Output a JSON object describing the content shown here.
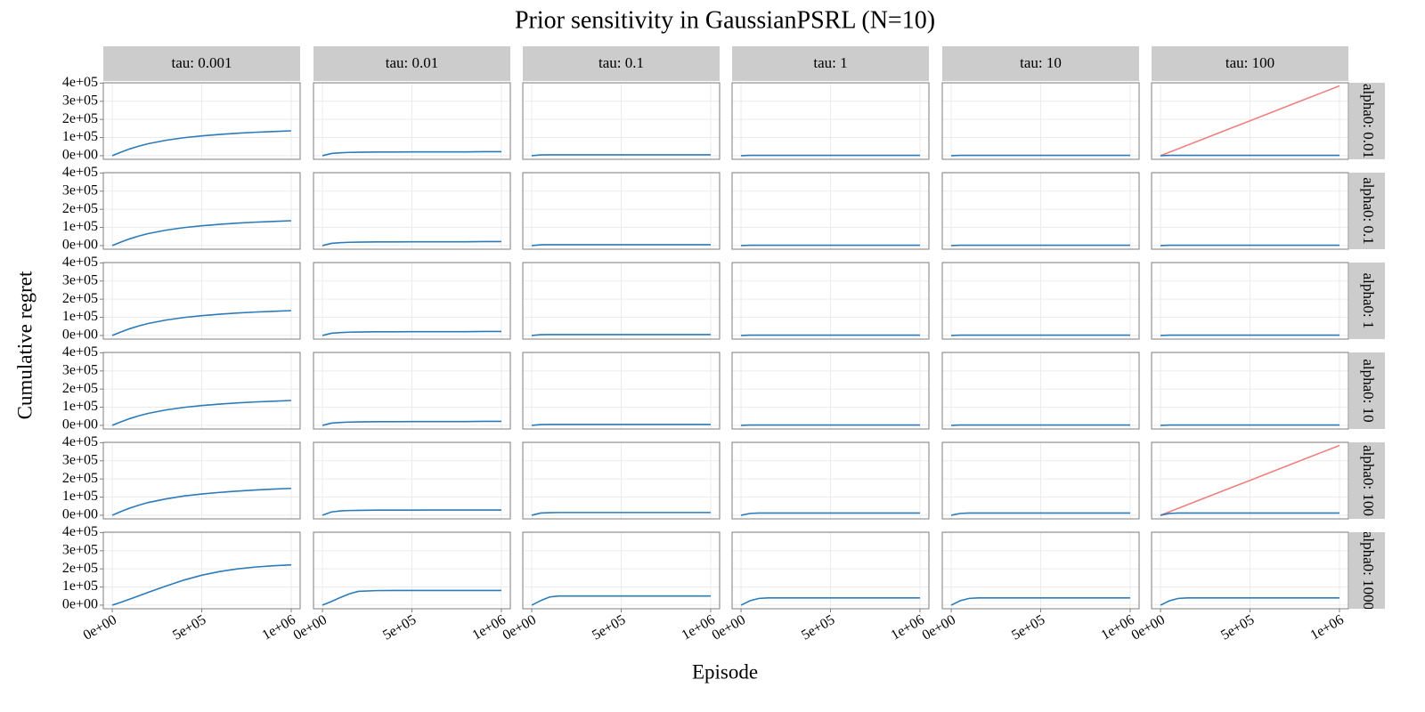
{
  "chart_data": {
    "type": "line",
    "title": "Prior sensitivity in GaussianPSRL (N=10)",
    "xlabel": "Episode",
    "ylabel": "Cumulative regret",
    "col_labels": [
      "tau: 0.001",
      "tau: 0.01",
      "tau: 0.1",
      "tau: 1",
      "tau: 10",
      "tau: 100"
    ],
    "row_labels": [
      "alpha0: 0.01",
      "alpha0: 0.1",
      "alpha0: 1",
      "alpha0: 10",
      "alpha0: 100",
      "alpha0: 1000"
    ],
    "xlim": [
      -50000,
      1050000
    ],
    "xticks": [
      {
        "value": 0,
        "label": "0e+00"
      },
      {
        "value": 500000,
        "label": "5e+05"
      },
      {
        "value": 1000000,
        "label": "1e+06"
      }
    ],
    "ylim": [
      -20000,
      402000
    ],
    "yticks": [
      {
        "value": 0,
        "label": "0e+00"
      },
      {
        "value": 100000,
        "label": "1e+05"
      },
      {
        "value": 200000,
        "label": "2e+05"
      },
      {
        "value": 300000,
        "label": "3e+05"
      },
      {
        "value": 400000,
        "label": "4e+05"
      }
    ],
    "grid": true,
    "x": [
      0,
      50000,
      100000,
      150000,
      200000,
      300000,
      400000,
      500000,
      600000,
      700000,
      800000,
      900000,
      1000000
    ],
    "facets": [
      [
        {
          "series": [
            {
              "color": "#2b7bba",
              "values": [
                0,
                20000,
                38000,
                53000,
                66000,
                85000,
                99000,
                109000,
                117000,
                124000,
                129000,
                133000,
                137000
              ]
            }
          ]
        },
        {
          "series": [
            {
              "color": "#2b7bba",
              "values": [
                0,
                12000,
                16000,
                18000,
                19000,
                20000,
                20000,
                21000,
                21000,
                21000,
                21000,
                22000,
                22000
              ]
            }
          ]
        },
        {
          "series": [
            {
              "color": "#2b7bba",
              "values": [
                0,
                4000,
                5000,
                5000,
                5000,
                5000,
                5000,
                5000,
                5000,
                5000,
                5000,
                5000,
                5000
              ]
            }
          ]
        },
        {
          "series": [
            {
              "color": "#2b7bba",
              "values": [
                0,
                2000,
                2000,
                2000,
                2000,
                2000,
                2000,
                2000,
                2000,
                2000,
                2000,
                2000,
                2000
              ]
            }
          ]
        },
        {
          "series": [
            {
              "color": "#2b7bba",
              "values": [
                0,
                2000,
                2000,
                2000,
                2000,
                2000,
                2000,
                2000,
                2000,
                2000,
                2000,
                2000,
                2000
              ]
            }
          ]
        },
        {
          "series": [
            {
              "color": "#f08080",
              "values": [
                0,
                19250,
                38500,
                57750,
                77000,
                115500,
                154000,
                192500,
                231000,
                269500,
                308000,
                346500,
                385000
              ]
            },
            {
              "color": "#2b7bba",
              "values": [
                0,
                2000,
                2000,
                2000,
                2000,
                2000,
                2000,
                2000,
                2000,
                2000,
                2000,
                2000,
                2000
              ]
            }
          ]
        }
      ],
      [
        {
          "series": [
            {
              "color": "#2b7bba",
              "values": [
                0,
                20000,
                38000,
                53000,
                66000,
                85000,
                99000,
                109000,
                117000,
                124000,
                129000,
                133000,
                137000
              ]
            }
          ]
        },
        {
          "series": [
            {
              "color": "#2b7bba",
              "values": [
                0,
                12000,
                16000,
                18000,
                19000,
                20000,
                20000,
                21000,
                21000,
                21000,
                21000,
                22000,
                22000
              ]
            }
          ]
        },
        {
          "series": [
            {
              "color": "#2b7bba",
              "values": [
                0,
                4000,
                5000,
                5000,
                5000,
                5000,
                5000,
                5000,
                5000,
                5000,
                5000,
                5000,
                5000
              ]
            }
          ]
        },
        {
          "series": [
            {
              "color": "#2b7bba",
              "values": [
                0,
                2000,
                2000,
                2000,
                2000,
                2000,
                2000,
                2000,
                2000,
                2000,
                2000,
                2000,
                2000
              ]
            }
          ]
        },
        {
          "series": [
            {
              "color": "#2b7bba",
              "values": [
                0,
                2000,
                2000,
                2000,
                2000,
                2000,
                2000,
                2000,
                2000,
                2000,
                2000,
                2000,
                2000
              ]
            }
          ]
        },
        {
          "series": [
            {
              "color": "#2b7bba",
              "values": [
                0,
                2000,
                2000,
                2000,
                2000,
                2000,
                2000,
                2000,
                2000,
                2000,
                2000,
                2000,
                2000
              ]
            }
          ]
        }
      ],
      [
        {
          "series": [
            {
              "color": "#2b7bba",
              "values": [
                0,
                20000,
                38000,
                53000,
                66000,
                85000,
                99000,
                109000,
                117000,
                124000,
                129000,
                133000,
                137000
              ]
            }
          ]
        },
        {
          "series": [
            {
              "color": "#2b7bba",
              "values": [
                0,
                12000,
                16000,
                18000,
                19000,
                20000,
                20000,
                21000,
                21000,
                21000,
                21000,
                22000,
                22000
              ]
            }
          ]
        },
        {
          "series": [
            {
              "color": "#2b7bba",
              "values": [
                0,
                4000,
                5000,
                5000,
                5000,
                5000,
                5000,
                5000,
                5000,
                5000,
                5000,
                5000,
                5000
              ]
            }
          ]
        },
        {
          "series": [
            {
              "color": "#2b7bba",
              "values": [
                0,
                2000,
                2000,
                2000,
                2000,
                2000,
                2000,
                2000,
                2000,
                2000,
                2000,
                2000,
                2000
              ]
            }
          ]
        },
        {
          "series": [
            {
              "color": "#2b7bba",
              "values": [
                0,
                2000,
                2000,
                2000,
                2000,
                2000,
                2000,
                2000,
                2000,
                2000,
                2000,
                2000,
                2000
              ]
            }
          ]
        },
        {
          "series": [
            {
              "color": "#2b7bba",
              "values": [
                0,
                2000,
                2000,
                2000,
                2000,
                2000,
                2000,
                2000,
                2000,
                2000,
                2000,
                2000,
                2000
              ]
            }
          ]
        }
      ],
      [
        {
          "series": [
            {
              "color": "#2b7bba",
              "values": [
                0,
                20000,
                38000,
                53000,
                66000,
                85000,
                99000,
                109000,
                117000,
                124000,
                129000,
                133000,
                137000
              ]
            }
          ]
        },
        {
          "series": [
            {
              "color": "#2b7bba",
              "values": [
                0,
                12000,
                16000,
                18000,
                19000,
                20000,
                20000,
                21000,
                21000,
                21000,
                21000,
                22000,
                22000
              ]
            }
          ]
        },
        {
          "series": [
            {
              "color": "#2b7bba",
              "values": [
                0,
                4000,
                5000,
                5000,
                5000,
                5000,
                5000,
                5000,
                5000,
                5000,
                5000,
                5000,
                5000
              ]
            }
          ]
        },
        {
          "series": [
            {
              "color": "#2b7bba",
              "values": [
                0,
                2000,
                2000,
                2000,
                2000,
                2000,
                2000,
                2000,
                2000,
                2000,
                2000,
                2000,
                2000
              ]
            }
          ]
        },
        {
          "series": [
            {
              "color": "#2b7bba",
              "values": [
                0,
                2000,
                2000,
                2000,
                2000,
                2000,
                2000,
                2000,
                2000,
                2000,
                2000,
                2000,
                2000
              ]
            }
          ]
        },
        {
          "series": [
            {
              "color": "#2b7bba",
              "values": [
                0,
                2000,
                2000,
                2000,
                2000,
                2000,
                2000,
                2000,
                2000,
                2000,
                2000,
                2000,
                2000
              ]
            }
          ]
        }
      ],
      [
        {
          "series": [
            {
              "color": "#2b7bba",
              "values": [
                0,
                21000,
                40000,
                56000,
                70000,
                90000,
                106000,
                117000,
                126000,
                133000,
                139000,
                144000,
                148000
              ]
            }
          ]
        },
        {
          "series": [
            {
              "color": "#2b7bba",
              "values": [
                0,
                18000,
                24000,
                26000,
                27000,
                28000,
                28000,
                28000,
                29000,
                29000,
                29000,
                29000,
                29000
              ]
            }
          ]
        },
        {
          "series": [
            {
              "color": "#2b7bba",
              "values": [
                0,
                12000,
                14000,
                15000,
                15000,
                15000,
                15000,
                15000,
                15000,
                15000,
                15000,
                15000,
                15000
              ]
            }
          ]
        },
        {
          "series": [
            {
              "color": "#2b7bba",
              "values": [
                0,
                10000,
                12000,
                12000,
                12000,
                12000,
                12000,
                12000,
                12000,
                12000,
                12000,
                12000,
                12000
              ]
            }
          ]
        },
        {
          "series": [
            {
              "color": "#2b7bba",
              "values": [
                0,
                10000,
                12000,
                12000,
                12000,
                12000,
                12000,
                12000,
                12000,
                12000,
                12000,
                12000,
                12000
              ]
            }
          ]
        },
        {
          "series": [
            {
              "color": "#f08080",
              "values": [
                0,
                19250,
                38500,
                57750,
                77000,
                115500,
                154000,
                192500,
                231000,
                269500,
                308000,
                346500,
                385000
              ]
            },
            {
              "color": "#2b7bba",
              "values": [
                0,
                10000,
                12000,
                12000,
                12000,
                12000,
                12000,
                12000,
                12000,
                12000,
                12000,
                12000,
                12000
              ]
            }
          ]
        }
      ],
      [
        {
          "series": [
            {
              "color": "#2b7bba",
              "values": [
                0,
                16000,
                34000,
                52000,
                70000,
                105000,
                138000,
                165000,
                185000,
                200000,
                210000,
                217000,
                222000
              ]
            }
          ]
        },
        {
          "series": [
            {
              "color": "#2b7bba",
              "values": [
                0,
                20000,
                42000,
                62000,
                76000,
                80000,
                81000,
                81000,
                81000,
                81000,
                81000,
                81000,
                81000
              ]
            }
          ]
        },
        {
          "series": [
            {
              "color": "#2b7bba",
              "values": [
                0,
                25000,
                45000,
                50000,
                50000,
                50000,
                50000,
                50000,
                50000,
                50000,
                50000,
                50000,
                50000
              ]
            }
          ]
        },
        {
          "series": [
            {
              "color": "#2b7bba",
              "values": [
                0,
                24000,
                37000,
                40000,
                40000,
                40000,
                40000,
                40000,
                40000,
                40000,
                40000,
                40000,
                40000
              ]
            }
          ]
        },
        {
          "series": [
            {
              "color": "#2b7bba",
              "values": [
                0,
                24000,
                37000,
                40000,
                40000,
                40000,
                40000,
                40000,
                40000,
                40000,
                40000,
                40000,
                40000
              ]
            }
          ]
        },
        {
          "series": [
            {
              "color": "#2b7bba",
              "values": [
                0,
                24000,
                37000,
                40000,
                40000,
                40000,
                40000,
                40000,
                40000,
                40000,
                40000,
                40000,
                40000
              ]
            }
          ]
        }
      ]
    ]
  }
}
